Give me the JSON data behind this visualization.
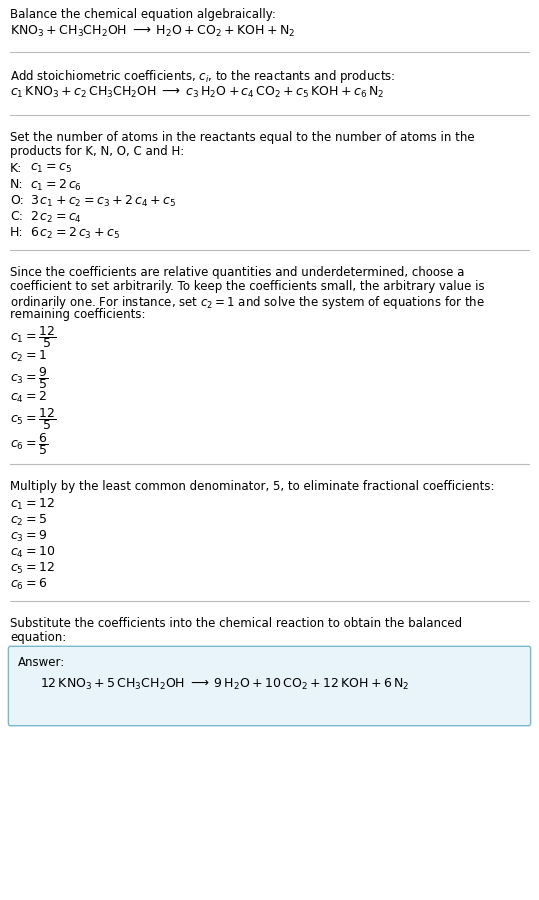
{
  "bg_color": "#ffffff",
  "text_color": "#000000",
  "divider_color": "#bbbbbb",
  "answer_box_bg": "#e8f4fa",
  "answer_box_border": "#7ab8cc",
  "section1_title": "Balance the chemical equation algebraically:",
  "section2_title": "Add stoichiometric coefficients, $c_i$, to the reactants and products:",
  "section3_title_line1": "Set the number of atoms in the reactants equal to the number of atoms in the",
  "section3_title_line2": "products for K, N, O, C and H:",
  "section4_title_line1": "Since the coefficients are relative quantities and underdetermined, choose a",
  "section4_title_line2": "coefficient to set arbitrarily. To keep the coefficients small, the arbitrary value is",
  "section4_title_line3": "ordinarily one. For instance, set $c_2 = 1$ and solve the system of equations for the",
  "section4_title_line4": "remaining coefficients:",
  "section5_title": "Multiply by the least common denominator, 5, to eliminate fractional coefficients:",
  "section6_title_line1": "Substitute the coefficients into the chemical reaction to obtain the balanced",
  "section6_title_line2": "equation:",
  "answer_label": "Answer:",
  "fs_body": 8.5,
  "fs_math": 9.0
}
